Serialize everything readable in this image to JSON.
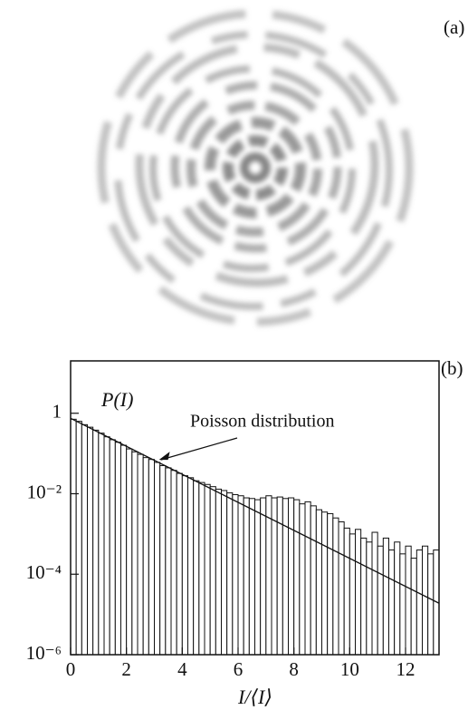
{
  "chart_data": {
    "type": "histogram",
    "panel_a_label": "(a)",
    "panel_b_label": "(b)",
    "y_label": "P(I)",
    "x_label": "I/⟨I⟩",
    "log_y": true,
    "xlim": [
      0,
      13.2
    ],
    "ylim": [
      1e-06,
      20
    ],
    "xticks": [
      0,
      2,
      4,
      6,
      8,
      10,
      12
    ],
    "yticks": [
      {
        "value": 1e-06,
        "label": "10⁻⁶"
      },
      {
        "value": 0.0001,
        "label": "10⁻⁴"
      },
      {
        "value": 0.01,
        "label": "10⁻²"
      },
      1
    ],
    "bins": [
      0,
      0.2,
      0.4,
      0.6,
      0.8,
      1,
      1.2,
      1.4,
      1.6,
      1.8,
      2,
      2.2,
      2.4,
      2.6,
      2.8,
      3,
      3.2,
      3.4,
      3.6,
      3.8,
      4,
      4.2,
      4.4,
      4.6,
      4.8,
      5,
      5.2,
      5.4,
      5.6,
      5.8,
      6,
      6.2,
      6.4,
      6.6,
      6.8,
      7,
      7.2,
      7.4,
      7.6,
      7.8,
      8,
      8.2,
      8.4,
      8.6,
      8.8,
      9,
      9.2,
      9.4,
      9.6,
      9.8,
      10,
      10.2,
      10.4,
      10.6,
      10.8,
      11,
      11.2,
      11.4,
      11.6,
      11.8,
      12,
      12.2,
      12.4,
      12.6,
      12.8,
      13,
      13.2
    ],
    "values": [
      0.71,
      0.63,
      0.52,
      0.45,
      0.38,
      0.32,
      0.26,
      0.22,
      0.19,
      0.16,
      0.13,
      0.11,
      0.095,
      0.079,
      0.071,
      0.06,
      0.05,
      0.044,
      0.038,
      0.032,
      0.028,
      0.025,
      0.021,
      0.019,
      0.017,
      0.015,
      0.013,
      0.012,
      0.0105,
      0.0095,
      0.0089,
      0.0079,
      0.0076,
      0.0071,
      0.0079,
      0.0089,
      0.0079,
      0.0083,
      0.0076,
      0.0079,
      0.0071,
      0.0056,
      0.0063,
      0.005,
      0.004,
      0.0035,
      0.0032,
      0.0025,
      0.002,
      0.0014,
      0.001,
      0.0013,
      0.00079,
      0.00063,
      0.0011,
      0.0005,
      0.00079,
      0.0004,
      0.00063,
      0.00032,
      0.0005,
      0.00025,
      0.0004,
      0.0005,
      0.00032,
      0.0004
    ],
    "color": "#ffffff",
    "edge_color": "#111111",
    "fit": {
      "name": "Poisson distribution",
      "x": [
        0,
        13.2
      ],
      "values": [
        0.75,
        1.9e-05
      ],
      "color": "#111111"
    }
  }
}
